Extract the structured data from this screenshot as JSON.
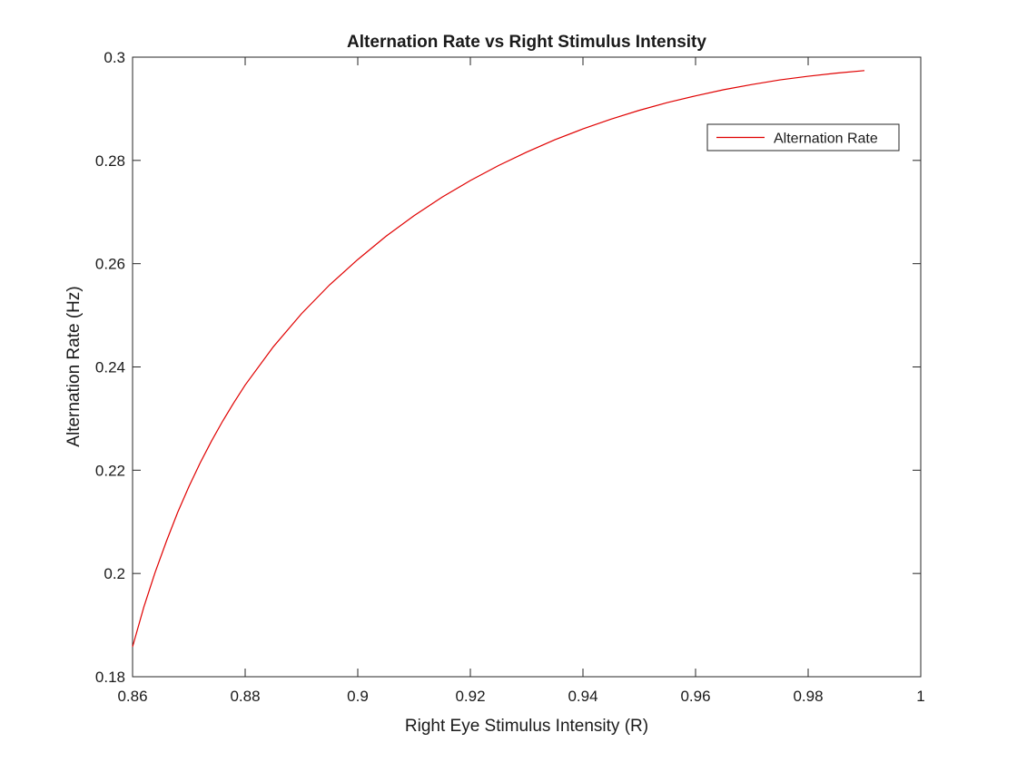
{
  "chart_data": {
    "type": "line",
    "title": "Alternation Rate vs Right Stimulus Intensity",
    "xlabel": "Right Eye Stimulus Intensity (R)",
    "ylabel": "Alternation Rate (Hz)",
    "xlim": [
      0.86,
      1.0
    ],
    "ylim": [
      0.18,
      0.3
    ],
    "xticks": [
      0.86,
      0.88,
      0.9,
      0.92,
      0.94,
      0.96,
      0.98,
      1
    ],
    "xtick_labels": [
      "0.86",
      "0.88",
      "0.9",
      "0.92",
      "0.94",
      "0.96",
      "0.98",
      "1"
    ],
    "yticks": [
      0.18,
      0.2,
      0.22,
      0.24,
      0.26,
      0.28,
      0.3
    ],
    "ytick_labels": [
      "0.18",
      "0.2",
      "0.22",
      "0.24",
      "0.26",
      "0.28",
      "0.3"
    ],
    "grid": false,
    "legend_position": "top-right",
    "series": [
      {
        "name": "Alternation Rate",
        "color": "#e00000",
        "x": [
          0.86,
          0.862,
          0.864,
          0.866,
          0.868,
          0.87,
          0.872,
          0.874,
          0.876,
          0.878,
          0.88,
          0.885,
          0.89,
          0.895,
          0.9,
          0.905,
          0.91,
          0.915,
          0.92,
          0.925,
          0.93,
          0.935,
          0.94,
          0.945,
          0.95,
          0.955,
          0.96,
          0.965,
          0.97,
          0.975,
          0.98,
          0.985,
          0.99
        ],
        "y": [
          0.1858,
          0.1935,
          0.2002,
          0.2062,
          0.2118,
          0.2168,
          0.2214,
          0.2256,
          0.2295,
          0.2331,
          0.2365,
          0.2439,
          0.2503,
          0.2559,
          0.2608,
          0.2653,
          0.2693,
          0.2729,
          0.2761,
          0.279,
          0.2816,
          0.284,
          0.2861,
          0.288,
          0.2897,
          0.2912,
          0.2925,
          0.2937,
          0.2947,
          0.2956,
          0.2963,
          0.2969,
          0.2974
        ]
      }
    ]
  }
}
